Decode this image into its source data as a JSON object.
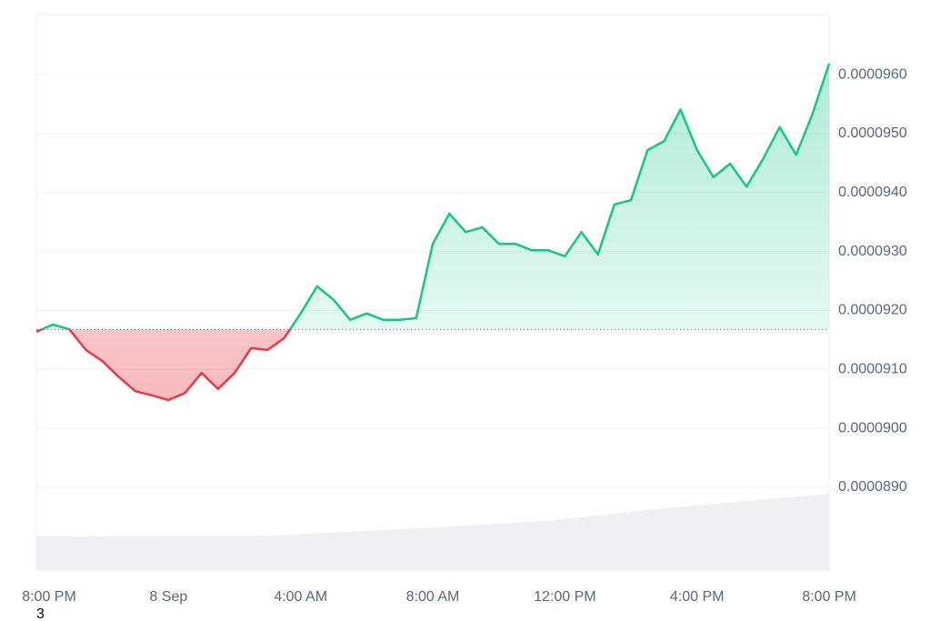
{
  "chart_data": {
    "type": "line",
    "x": [
      0,
      0.5,
      1,
      1.5,
      2,
      2.5,
      3,
      3.5,
      4,
      4.5,
      5,
      5.5,
      6,
      6.5,
      7,
      7.5,
      8,
      8.5,
      9,
      9.5,
      10,
      10.5,
      11,
      11.5,
      12,
      12.5,
      13,
      13.5,
      14,
      14.5,
      15,
      15.5,
      16,
      16.5,
      17,
      17.5,
      18,
      18.5,
      19,
      19.5,
      20,
      20.5,
      21,
      21.5,
      22,
      22.5,
      23,
      23.5,
      24
    ],
    "values": [
      9.164e-05,
      9.176e-05,
      9.168e-05,
      9.133e-05,
      9.114e-05,
      9.087e-05,
      9.063e-05,
      9.056e-05,
      9.048e-05,
      9.06e-05,
      9.094e-05,
      9.067e-05,
      9.094e-05,
      9.136e-05,
      9.133e-05,
      9.153e-05,
      9.195e-05,
      9.241e-05,
      9.218e-05,
      9.184e-05,
      9.195e-05,
      9.184e-05,
      9.184e-05,
      9.187e-05,
      9.313e-05,
      9.364e-05,
      9.333e-05,
      9.341e-05,
      9.313e-05,
      9.313e-05,
      9.302e-05,
      9.302e-05,
      9.292e-05,
      9.333e-05,
      9.295e-05,
      9.38e-05,
      9.387e-05,
      9.472e-05,
      9.487e-05,
      9.541e-05,
      9.472e-05,
      9.426e-05,
      9.449e-05,
      9.41e-05,
      9.457e-05,
      9.511e-05,
      9.464e-05,
      9.534e-05,
      9.619e-05
    ],
    "baseline": 9.168e-05,
    "colors": {
      "above": "#16c784",
      "below": "#ea3943"
    },
    "xlim": [
      0,
      24
    ],
    "xticks": [
      {
        "value": 0,
        "label": "8:00 PM"
      },
      {
        "value": 4,
        "label": "8 Sep"
      },
      {
        "value": 8,
        "label": "4:00 AM"
      },
      {
        "value": 12,
        "label": "8:00 AM"
      },
      {
        "value": 16,
        "label": "12:00 PM"
      },
      {
        "value": 20,
        "label": "4:00 PM"
      },
      {
        "value": 24,
        "label": "8:00 PM"
      }
    ],
    "ylim": [
      8.758e-05,
      9.702e-05
    ],
    "yticks": [
      {
        "value": 8.9e-05,
        "label": "0.0000890"
      },
      {
        "value": 9e-05,
        "label": "0.0000900"
      },
      {
        "value": 9.1e-05,
        "label": "0.0000910"
      },
      {
        "value": 9.2e-05,
        "label": "0.0000920"
      },
      {
        "value": 9.3e-05,
        "label": "0.0000930"
      },
      {
        "value": 9.4e-05,
        "label": "0.0000940"
      },
      {
        "value": 9.5e-05,
        "label": "0.0000950"
      },
      {
        "value": 9.6e-05,
        "label": "0.0000960"
      }
    ],
    "grid": true,
    "annotation": "3"
  }
}
